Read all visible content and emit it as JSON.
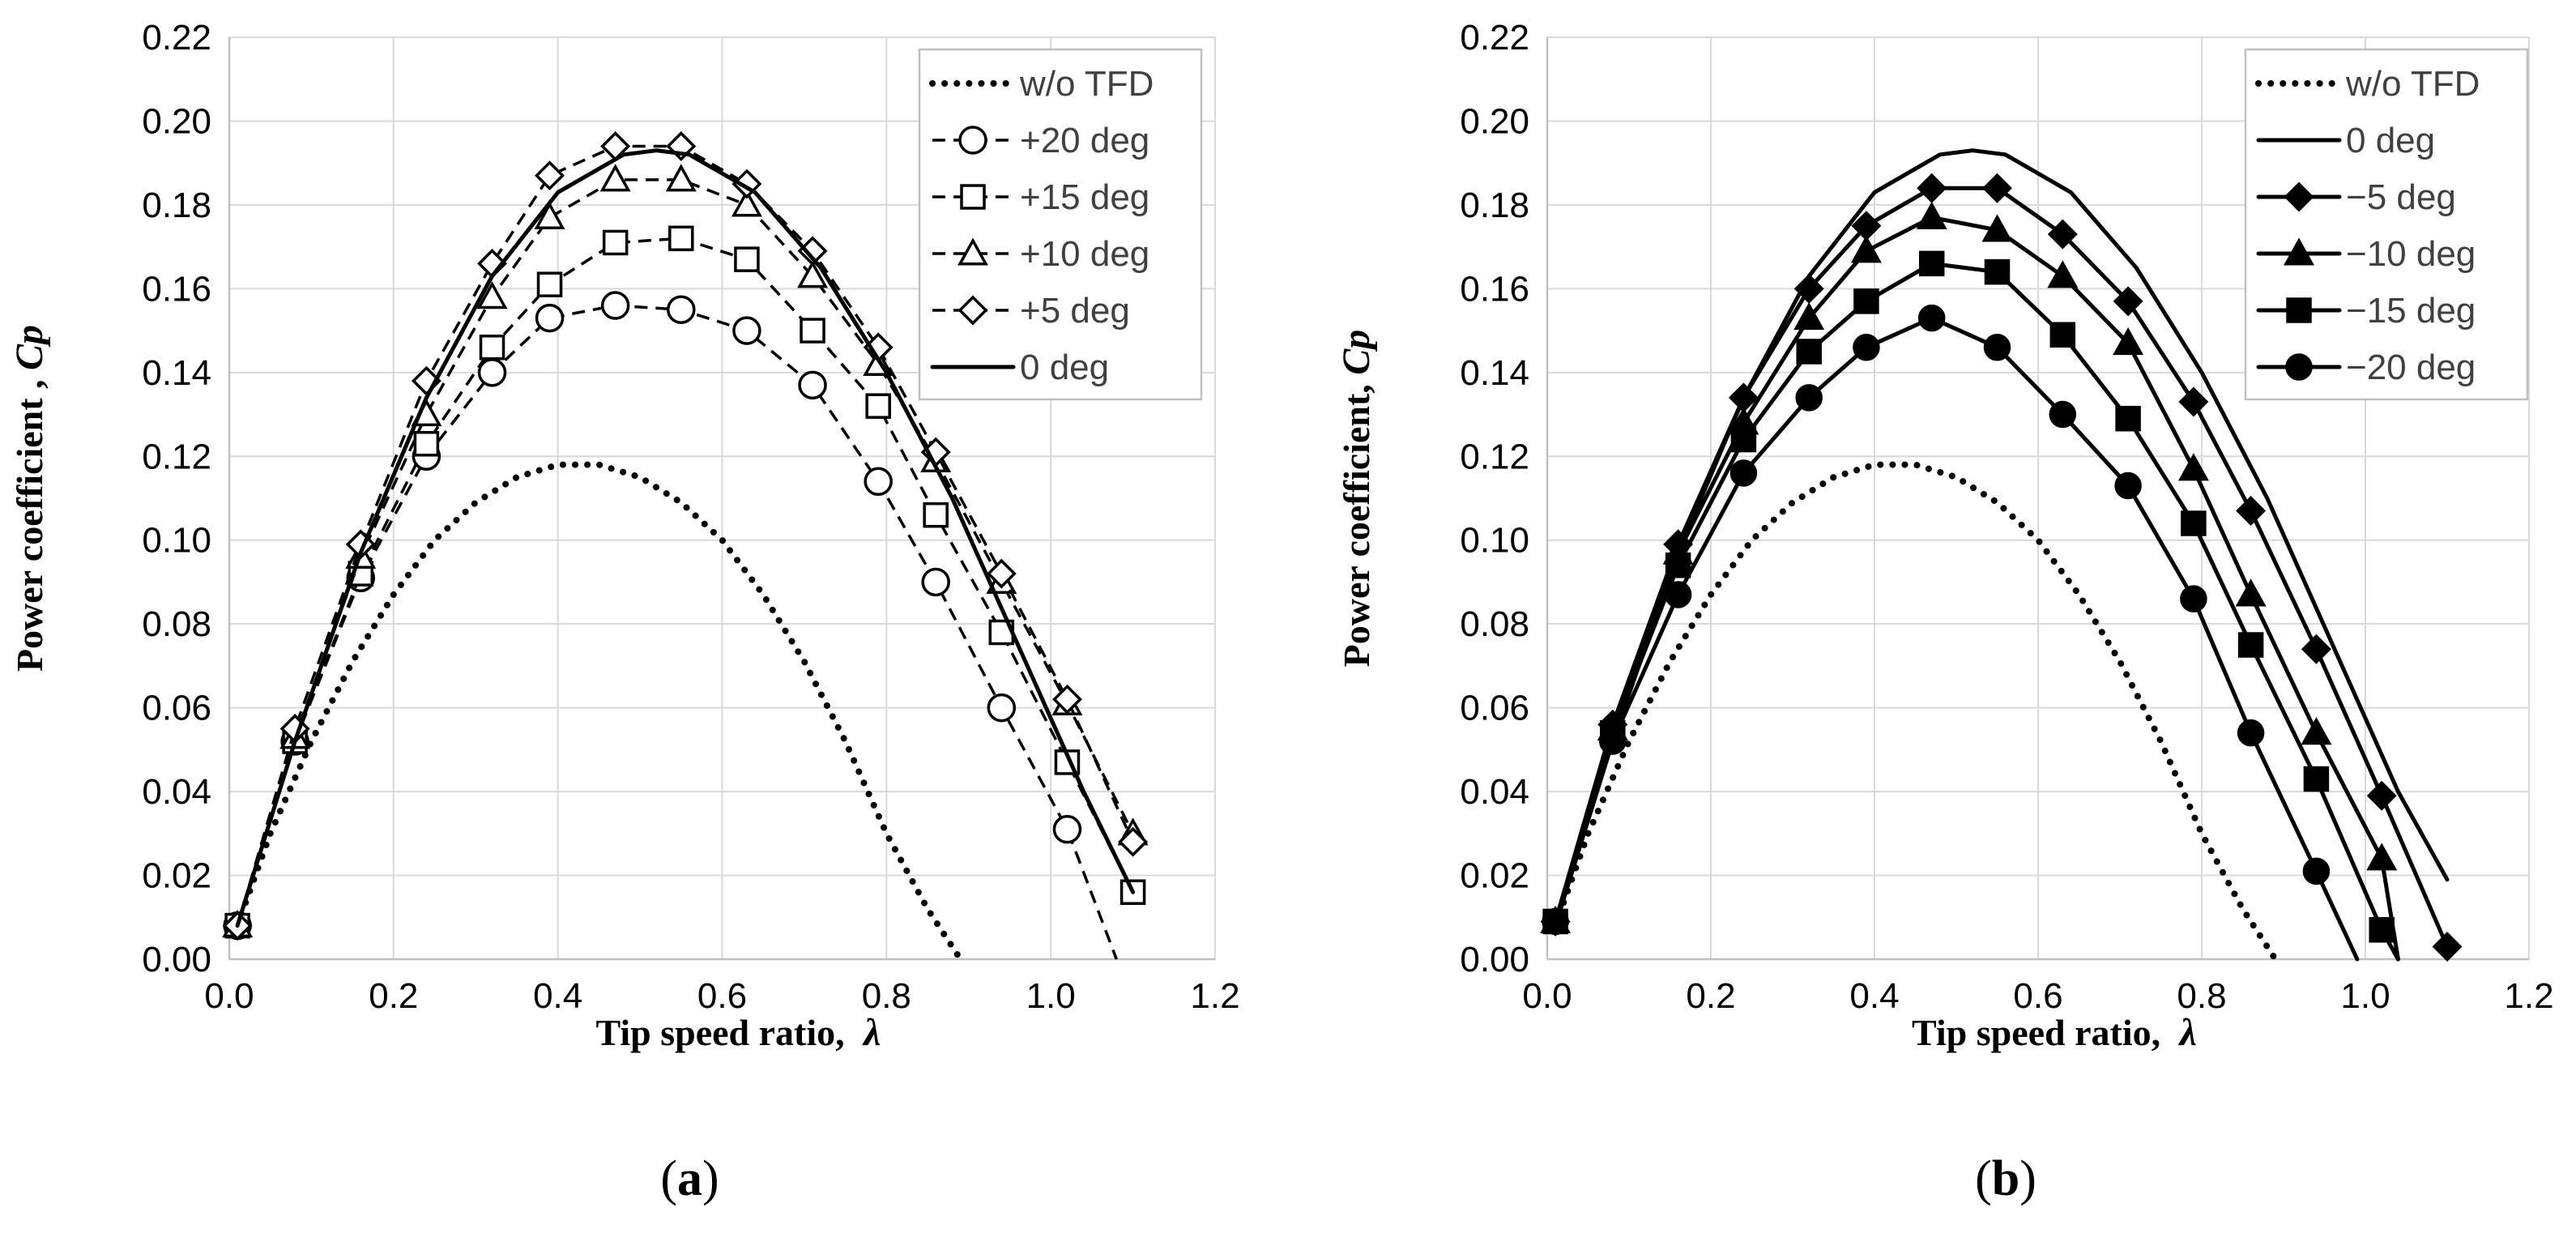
{
  "chart_data": [
    {
      "type": "line",
      "panel": "(a)",
      "panel_letter": "a",
      "ylabel": "Power coefficient , ",
      "ylabel_symbol": "Cp",
      "xlabel": "Tip speed ratio, ",
      "xlabel_symbol": "λ",
      "xlim": [
        0.0,
        1.2
      ],
      "ylim": [
        0.0,
        0.22
      ],
      "xticks": [
        "0.0",
        "0.2",
        "0.4",
        "0.6",
        "0.8",
        "1.0",
        "1.2"
      ],
      "yticks": [
        "0.00",
        "0.02",
        "0.04",
        "0.06",
        "0.08",
        "0.10",
        "0.12",
        "0.14",
        "0.16",
        "0.18",
        "0.20",
        "0.22"
      ],
      "grid": true,
      "legend_position": "top-right",
      "series": [
        {
          "name": "w/o TFD",
          "style": "dotted",
          "marker": "none",
          "x": [
            0.01,
            0.05,
            0.1,
            0.15,
            0.2,
            0.25,
            0.3,
            0.35,
            0.4,
            0.45,
            0.5,
            0.55,
            0.6,
            0.65,
            0.7,
            0.75,
            0.8,
            0.85,
            0.89
          ],
          "y": [
            0.008,
            0.03,
            0.052,
            0.071,
            0.087,
            0.1,
            0.109,
            0.115,
            0.118,
            0.118,
            0.115,
            0.109,
            0.1,
            0.087,
            0.071,
            0.052,
            0.03,
            0.012,
            0.0
          ]
        },
        {
          "name": "+20 deg",
          "style": "dashed",
          "marker": "circle-open",
          "x": [
            0.01,
            0.08,
            0.16,
            0.24,
            0.32,
            0.39,
            0.47,
            0.55,
            0.63,
            0.71,
            0.79,
            0.86,
            0.94,
            1.02,
            1.08
          ],
          "y": [
            0.008,
            0.052,
            0.091,
            0.12,
            0.14,
            0.153,
            0.156,
            0.155,
            0.15,
            0.137,
            0.114,
            0.09,
            0.06,
            0.031,
            0.0
          ]
        },
        {
          "name": "+15 deg",
          "style": "dashed",
          "marker": "square-open",
          "x": [
            0.01,
            0.08,
            0.16,
            0.24,
            0.32,
            0.39,
            0.47,
            0.55,
            0.63,
            0.71,
            0.79,
            0.86,
            0.94,
            1.02,
            1.1
          ],
          "y": [
            0.008,
            0.052,
            0.092,
            0.123,
            0.146,
            0.161,
            0.171,
            0.172,
            0.167,
            0.15,
            0.132,
            0.106,
            0.078,
            0.047,
            0.016
          ]
        },
        {
          "name": "+10 deg",
          "style": "dashed",
          "marker": "triangle-open",
          "x": [
            0.01,
            0.08,
            0.16,
            0.24,
            0.32,
            0.39,
            0.47,
            0.55,
            0.63,
            0.71,
            0.79,
            0.86,
            0.94,
            1.02,
            1.1
          ],
          "y": [
            0.008,
            0.053,
            0.096,
            0.13,
            0.158,
            0.177,
            0.186,
            0.186,
            0.18,
            0.163,
            0.142,
            0.119,
            0.09,
            0.061,
            0.03
          ]
        },
        {
          "name": "+5 deg",
          "style": "dashed",
          "marker": "diamond-open",
          "x": [
            0.01,
            0.08,
            0.16,
            0.24,
            0.32,
            0.39,
            0.47,
            0.55,
            0.63,
            0.71,
            0.79,
            0.86,
            0.94,
            1.02,
            1.1
          ],
          "y": [
            0.008,
            0.055,
            0.099,
            0.138,
            0.166,
            0.187,
            0.194,
            0.194,
            0.185,
            0.169,
            0.146,
            0.121,
            0.092,
            0.062,
            0.028
          ]
        },
        {
          "name": "0 deg",
          "style": "solid",
          "marker": "none",
          "x": [
            0.01,
            0.08,
            0.16,
            0.24,
            0.32,
            0.4,
            0.48,
            0.52,
            0.56,
            0.64,
            0.72,
            0.8,
            0.88,
            0.96,
            1.04,
            1.1
          ],
          "y": [
            0.008,
            0.052,
            0.097,
            0.134,
            0.163,
            0.183,
            0.192,
            0.193,
            0.192,
            0.183,
            0.165,
            0.14,
            0.11,
            0.075,
            0.04,
            0.016
          ]
        }
      ]
    },
    {
      "type": "line",
      "panel": "(b)",
      "panel_letter": "b",
      "ylabel": "Power coefficient, ",
      "ylabel_symbol": "Cp",
      "xlabel": "Tip speed ratio, ",
      "xlabel_symbol": "λ",
      "xlim": [
        0.0,
        1.2
      ],
      "ylim": [
        0.0,
        0.22
      ],
      "xticks": [
        "0.0",
        "0.2",
        "0.4",
        "0.6",
        "0.8",
        "1.0",
        "1.2"
      ],
      "yticks": [
        "0.00",
        "0.02",
        "0.04",
        "0.06",
        "0.08",
        "0.10",
        "0.12",
        "0.14",
        "0.16",
        "0.18",
        "0.20",
        "0.22"
      ],
      "grid": true,
      "legend_position": "top-right",
      "series": [
        {
          "name": "w/o TFD",
          "style": "dotted",
          "marker": "none",
          "x": [
            0.01,
            0.05,
            0.1,
            0.15,
            0.2,
            0.25,
            0.3,
            0.35,
            0.4,
            0.45,
            0.5,
            0.55,
            0.6,
            0.65,
            0.7,
            0.75,
            0.8,
            0.85,
            0.89
          ],
          "y": [
            0.008,
            0.03,
            0.052,
            0.071,
            0.087,
            0.1,
            0.109,
            0.115,
            0.118,
            0.118,
            0.115,
            0.109,
            0.1,
            0.087,
            0.071,
            0.052,
            0.03,
            0.012,
            0.0
          ]
        },
        {
          "name": "0 deg",
          "style": "solid",
          "marker": "none",
          "x": [
            0.01,
            0.08,
            0.16,
            0.24,
            0.32,
            0.4,
            0.48,
            0.52,
            0.56,
            0.64,
            0.72,
            0.8,
            0.88,
            0.96,
            1.04,
            1.1
          ],
          "y": [
            0.008,
            0.052,
            0.097,
            0.134,
            0.163,
            0.183,
            0.192,
            0.193,
            0.192,
            0.183,
            0.165,
            0.14,
            0.11,
            0.075,
            0.04,
            0.019
          ]
        },
        {
          "name": "−5 deg",
          "style": "solid",
          "marker": "diamond-filled",
          "x": [
            0.01,
            0.08,
            0.16,
            0.24,
            0.32,
            0.39,
            0.47,
            0.55,
            0.63,
            0.71,
            0.79,
            0.86,
            0.94,
            1.02,
            1.1
          ],
          "y": [
            0.009,
            0.056,
            0.099,
            0.134,
            0.16,
            0.175,
            0.184,
            0.184,
            0.173,
            0.157,
            0.133,
            0.107,
            0.074,
            0.039,
            0.003
          ]
        },
        {
          "name": "−10 deg",
          "style": "solid",
          "marker": "triangle-filled",
          "x": [
            0.01,
            0.08,
            0.16,
            0.24,
            0.32,
            0.39,
            0.47,
            0.55,
            0.63,
            0.71,
            0.79,
            0.86,
            0.94,
            1.02,
            1.04
          ],
          "y": [
            0.009,
            0.055,
            0.097,
            0.128,
            0.153,
            0.169,
            0.177,
            0.174,
            0.163,
            0.147,
            0.117,
            0.087,
            0.054,
            0.024,
            0.0
          ]
        },
        {
          "name": "−15 deg",
          "style": "solid",
          "marker": "square-filled",
          "x": [
            0.01,
            0.08,
            0.16,
            0.24,
            0.32,
            0.39,
            0.47,
            0.55,
            0.63,
            0.71,
            0.79,
            0.86,
            0.94,
            1.02,
            1.04
          ],
          "y": [
            0.009,
            0.054,
            0.094,
            0.124,
            0.145,
            0.157,
            0.166,
            0.164,
            0.149,
            0.129,
            0.104,
            0.075,
            0.043,
            0.007,
            0.0
          ]
        },
        {
          "name": "−20 deg",
          "style": "solid",
          "marker": "circle-filled",
          "x": [
            0.01,
            0.08,
            0.16,
            0.24,
            0.32,
            0.39,
            0.47,
            0.55,
            0.63,
            0.71,
            0.79,
            0.86,
            0.94,
            0.99
          ],
          "y": [
            0.009,
            0.052,
            0.087,
            0.116,
            0.134,
            0.146,
            0.153,
            0.146,
            0.13,
            0.113,
            0.086,
            0.054,
            0.021,
            0.0
          ]
        }
      ]
    }
  ]
}
